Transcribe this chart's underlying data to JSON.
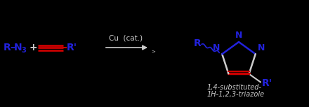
{
  "bg_color": "#000000",
  "blue_color": "#2222dd",
  "red_color": "#cc0000",
  "text_color": "#cccccc",
  "figsize": [
    4.4,
    1.53
  ],
  "dpi": 100,
  "catalyst_text": "Cu  (cat.)",
  "caption_line1": "1,4-substituted-",
  "caption_line2": "1H-1,2,3-triazole",
  "azide_R": "R",
  "azide_N": "N",
  "azide_sub": "3",
  "alkyne_Rprime": "R'",
  "ring_R": "R",
  "ring_Rprime": "R'",
  "ring_N_labels": [
    "N",
    "N",
    "N"
  ]
}
